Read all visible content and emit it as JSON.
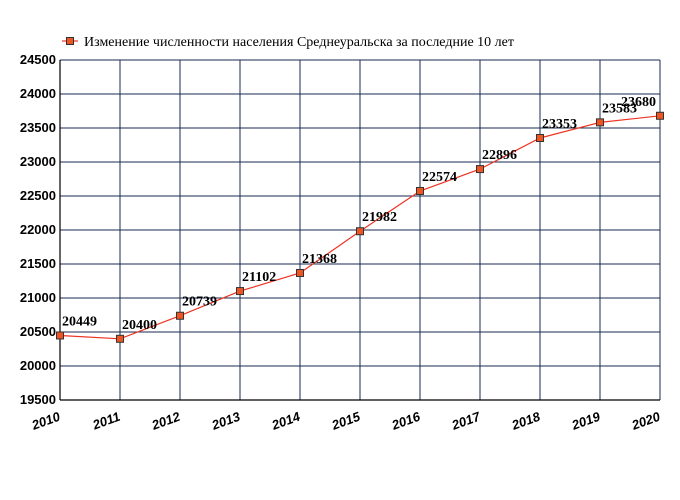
{
  "chart_data": {
    "type": "line",
    "title": "Изменение численности населения Среднеуральска за последние 10 лет",
    "categories": [
      "2010",
      "2011",
      "2012",
      "2013",
      "2014",
      "2015",
      "2016",
      "2017",
      "2018",
      "2019",
      "2020"
    ],
    "series": [
      {
        "name": "Изменение численности населения Среднеуральска за последние 10 лет",
        "values": [
          20449,
          20400,
          20739,
          21102,
          21368,
          21982,
          22574,
          22896,
          23353,
          23583,
          23680
        ]
      }
    ],
    "yticks": [
      "19500",
      "20000",
      "20500",
      "21000",
      "21500",
      "22000",
      "22500",
      "23000",
      "23500",
      "24000",
      "24500"
    ],
    "ylim": [
      19500,
      24500
    ],
    "xlabel": "",
    "ylabel": "",
    "grid": true,
    "legend": "top",
    "colors": {
      "line": "#ee3322",
      "marker_fill": "#ee5522",
      "marker_stroke": "#333333",
      "grid": "#1a2a50",
      "axis": "#000000"
    }
  }
}
